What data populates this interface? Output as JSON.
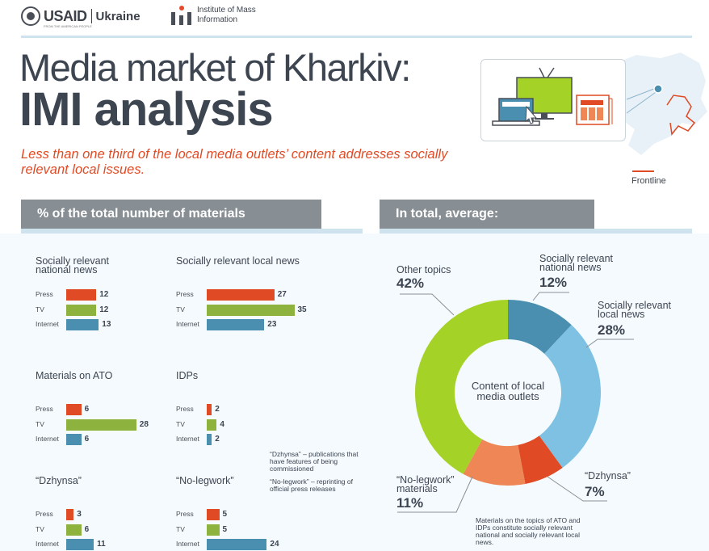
{
  "header": {
    "usaid": "USAID",
    "country": "Ukraine",
    "tagline": "FROM THE AMERICAN PEOPLE",
    "imi_name": "Institute of Mass Information"
  },
  "title_line1": "Media market of Kharkiv:",
  "title_line2": "IMI analysis",
  "subtitle": "Less than one third of the local media outlets’ content addresses socially relevant local issues.",
  "map": {
    "legend_label": "Frontline"
  },
  "icons": [
    "laptop-icon",
    "tv-icon",
    "newspaper-icon",
    "ukraine-map-icon"
  ],
  "colors": {
    "press": "#e04a24",
    "tv": "#8db23e",
    "internet": "#4a8fb0",
    "accent": "#e04a24"
  },
  "left_panel": {
    "heading": "% of the total number of materials"
  },
  "right_panel": {
    "heading": "In total, average:"
  },
  "notes": {
    "dzhynsa": "“Dzhynsa” – publications that have features of being commissioned",
    "nolegwork": "“No-legwork” – reprinting of official press releases",
    "footnote": "Materials on the topics of ATO and IDPs constitute socially relevant national and socially relevant local news."
  },
  "chart_data": [
    {
      "type": "bar",
      "title": "Socially relevant national news",
      "categories": [
        "Press",
        "TV",
        "Internet"
      ],
      "values": [
        12,
        12,
        13
      ]
    },
    {
      "type": "bar",
      "title": "Socially relevant local news",
      "categories": [
        "Press",
        "TV",
        "Internet"
      ],
      "values": [
        27,
        35,
        23
      ]
    },
    {
      "type": "bar",
      "title": "Materials on ATO",
      "categories": [
        "Press",
        "TV",
        "Internet"
      ],
      "values": [
        6,
        28,
        6
      ]
    },
    {
      "type": "bar",
      "title": "IDPs",
      "categories": [
        "Press",
        "TV",
        "Internet"
      ],
      "values": [
        2,
        4,
        2
      ]
    },
    {
      "type": "bar",
      "title": "“Dzhynsa”",
      "categories": [
        "Press",
        "TV",
        "Internet"
      ],
      "values": [
        3,
        6,
        11
      ]
    },
    {
      "type": "bar",
      "title": "“No-legwork”",
      "categories": [
        "Press",
        "TV",
        "Internet"
      ],
      "values": [
        5,
        5,
        24
      ]
    },
    {
      "type": "pie",
      "title": "Content of local media outlets",
      "slices": [
        {
          "label": "Socially relevant national news",
          "value": 12,
          "pct": "12%",
          "color": "#4a8fb0"
        },
        {
          "label": "Socially relevant local news",
          "value": 28,
          "pct": "28%",
          "color": "#7ec1e2"
        },
        {
          "label": "“Dzhynsa”",
          "value": 7,
          "pct": "7%",
          "color": "#e04a24"
        },
        {
          "label": "“No-legwork” materials",
          "value": 11,
          "pct": "11%",
          "color": "#ee8655"
        },
        {
          "label": "Other topics",
          "value": 42,
          "pct": "42%",
          "color": "#a5d227"
        }
      ]
    }
  ]
}
